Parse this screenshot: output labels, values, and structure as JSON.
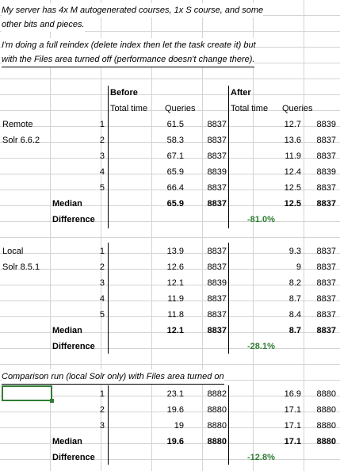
{
  "notes": [
    "My server has 4x M autogenerated courses, 1x S course, and some",
    "other bits and pieces.",
    "I'm doing a full reindex (delete index then let the task create it) but",
    "with the Files area turned off (performance doesn't change there)."
  ],
  "headers": {
    "before": "Before",
    "after": "After",
    "total_time": "Total time",
    "queries": "Queries"
  },
  "remote": {
    "label_line1": "Remote",
    "label_line2": "Solr 6.6.2",
    "rows": [
      {
        "n": "1",
        "bt": "61.5",
        "bq": "8837",
        "at": "12.7",
        "aq": "8839"
      },
      {
        "n": "2",
        "bt": "58.3",
        "bq": "8837",
        "at": "13.6",
        "aq": "8837"
      },
      {
        "n": "3",
        "bt": "67.1",
        "bq": "8837",
        "at": "11.9",
        "aq": "8837"
      },
      {
        "n": "4",
        "bt": "65.9",
        "bq": "8839",
        "at": "12.4",
        "aq": "8839"
      },
      {
        "n": "5",
        "bt": "66.4",
        "bq": "8837",
        "at": "12.5",
        "aq": "8837"
      }
    ],
    "median_label": "Median",
    "median": {
      "bt": "65.9",
      "bq": "8837",
      "at": "12.5",
      "aq": "8837"
    },
    "difference_label": "Difference",
    "difference": "-81.0%"
  },
  "local": {
    "label_line1": "Local",
    "label_line2": "Solr 8.5.1",
    "rows": [
      {
        "n": "1",
        "bt": "13.9",
        "bq": "8837",
        "at": "9.3",
        "aq": "8837"
      },
      {
        "n": "2",
        "bt": "12.6",
        "bq": "8837",
        "at": "9",
        "aq": "8837"
      },
      {
        "n": "3",
        "bt": "12.1",
        "bq": "8839",
        "at": "8.2",
        "aq": "8837"
      },
      {
        "n": "4",
        "bt": "11.9",
        "bq": "8837",
        "at": "8.7",
        "aq": "8837"
      },
      {
        "n": "5",
        "bt": "11.8",
        "bq": "8837",
        "at": "8.4",
        "aq": "8837"
      }
    ],
    "median_label": "Median",
    "median": {
      "bt": "12.1",
      "bq": "8837",
      "at": "8.7",
      "aq": "8837"
    },
    "difference_label": "Difference",
    "difference": "-28.1%"
  },
  "comparison": {
    "note": "Comparison run (local Solr only) with Files area turned on",
    "rows": [
      {
        "n": "1",
        "bt": "23.1",
        "bq": "8882",
        "at": "16.9",
        "aq": "8880"
      },
      {
        "n": "2",
        "bt": "19.6",
        "bq": "8880",
        "at": "17.1",
        "aq": "8880"
      },
      {
        "n": "3",
        "bt": "19",
        "bq": "8880",
        "at": "17.1",
        "aq": "8880"
      }
    ],
    "median_label": "Median",
    "median": {
      "bt": "19.6",
      "bq": "8880",
      "at": "17.1",
      "aq": "8880"
    },
    "difference_label": "Difference",
    "difference": "-12.8%"
  },
  "colors": {
    "difference": "#2e7d32",
    "selection": "#2f7d32",
    "gridline": "#d4d4d4"
  }
}
